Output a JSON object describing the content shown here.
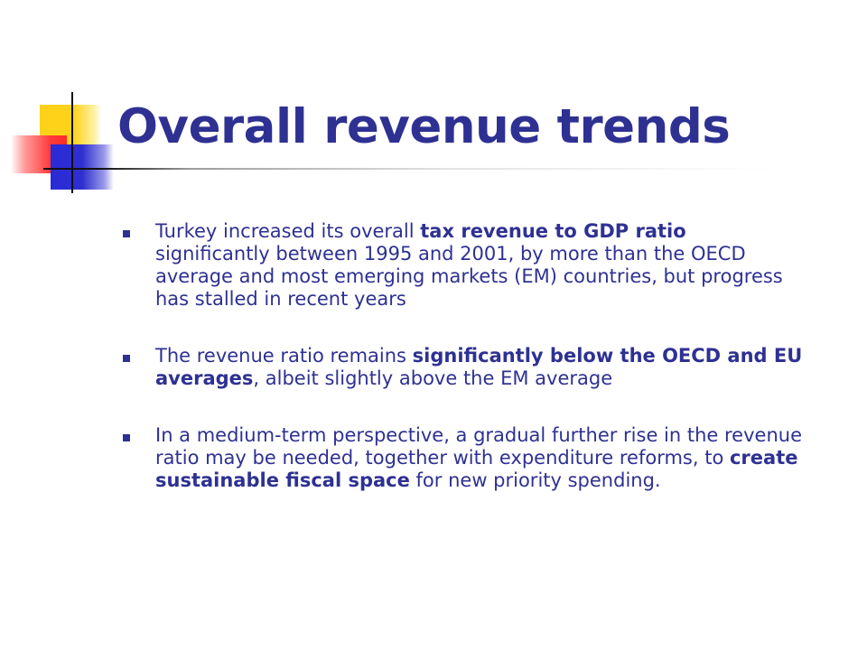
{
  "title": "Overall revenue trends",
  "colors": {
    "title": "#2e3192",
    "text": "#2e3192",
    "bullet": "#2e3192",
    "deco_yellow": "#ffd21a",
    "deco_red": "#ff3b3b",
    "deco_blue": "#2a2ad8"
  },
  "bullets": [
    [
      {
        "text": "Turkey increased its overall ",
        "bold": false
      },
      {
        "text": "tax revenue to GDP ratio",
        "bold": true
      },
      {
        "text": " significantly between 1995 and 2001, by more than the OECD average and most emerging markets (EM) countries, but progress has stalled in recent years",
        "bold": false
      }
    ],
    [
      {
        "text": "The revenue ratio remains ",
        "bold": false
      },
      {
        "text": "significantly below the OECD and EU averages",
        "bold": true
      },
      {
        "text": ", albeit slightly above the EM average",
        "bold": false
      }
    ],
    [
      {
        "text": "In a medium-term perspective, a gradual further rise in the revenue ratio may be needed, together with expenditure reforms, to ",
        "bold": false
      },
      {
        "text": "create sustainable fiscal space",
        "bold": true
      },
      {
        "text": " for new priority spending.",
        "bold": false
      }
    ]
  ]
}
